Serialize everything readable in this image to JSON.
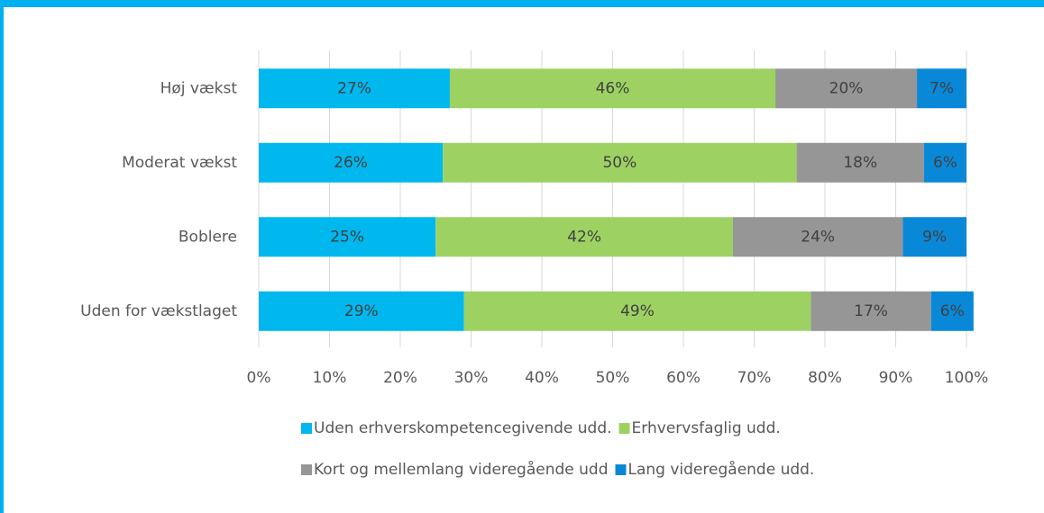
{
  "chart_data": {
    "type": "stacked_barh",
    "categories": [
      "Høj vækst",
      "Moderat vækst",
      "Boblere",
      "Uden for vækstlaget"
    ],
    "series": [
      {
        "name": "Uden erhverskompetencegivende udd.",
        "color": "#00b7ee",
        "values": [
          27,
          26,
          25,
          29
        ],
        "value_labels": [
          "27%",
          "26%",
          "25%",
          "29%"
        ]
      },
      {
        "name": "Erhvervsfaglig udd.",
        "color": "#9dd263",
        "values": [
          46,
          50,
          42,
          49
        ],
        "value_labels": [
          "46%",
          "50%",
          "42%",
          "49%"
        ]
      },
      {
        "name": "Kort og mellemlang videregående udd",
        "color": "#969696",
        "values": [
          20,
          18,
          24,
          17
        ],
        "value_labels": [
          "20%",
          "18%",
          "24%",
          "17%"
        ]
      },
      {
        "name": "Lang videregående udd.",
        "color": "#0a88d8",
        "values": [
          7,
          6,
          9,
          6
        ],
        "value_labels": [
          "7%",
          "6%",
          "9%",
          "6%"
        ]
      }
    ],
    "xlim": [
      0,
      100
    ],
    "xticks": [
      {
        "value": 0,
        "label": "0%"
      },
      {
        "value": 10,
        "label": "10%"
      },
      {
        "value": 20,
        "label": "20%"
      },
      {
        "value": 30,
        "label": "30%"
      },
      {
        "value": 40,
        "label": "40%"
      },
      {
        "value": 50,
        "label": "50%"
      },
      {
        "value": 60,
        "label": "60%"
      },
      {
        "value": 70,
        "label": "70%"
      },
      {
        "value": 80,
        "label": "80%"
      },
      {
        "value": 90,
        "label": "90%"
      },
      {
        "value": 100,
        "label": "100%"
      }
    ],
    "grid": true
  }
}
